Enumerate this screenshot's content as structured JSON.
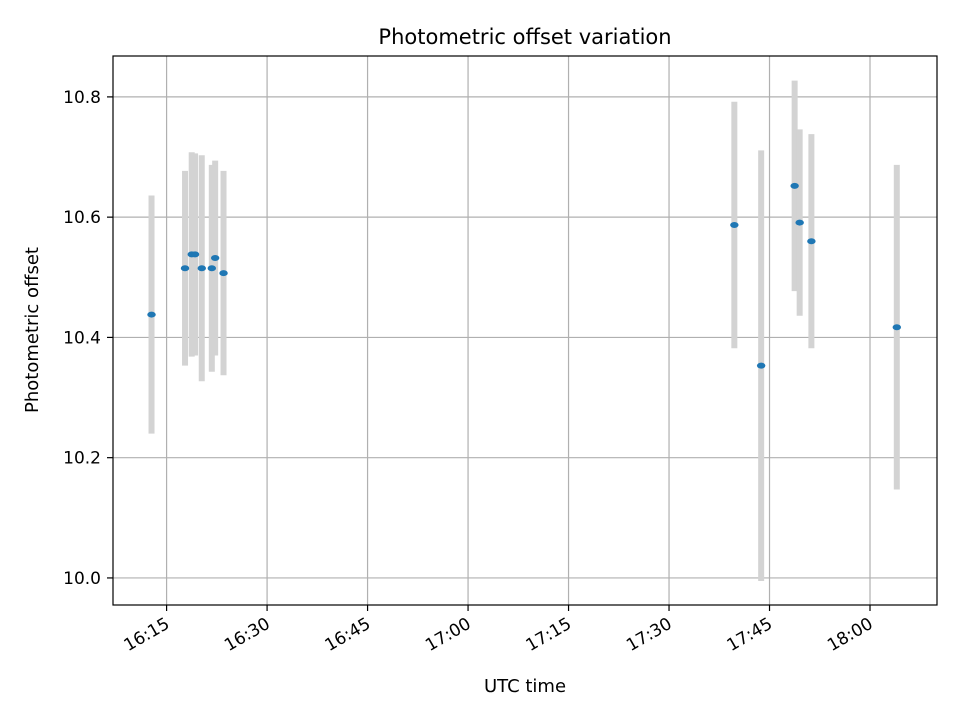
{
  "chart_data": {
    "type": "scatter",
    "title": "Photometric offset variation",
    "xlabel": "UTC time",
    "ylabel": "Photometric offset",
    "grid": true,
    "x_axis_type": "time",
    "xlim": [
      "16:07",
      "18:10"
    ],
    "ylim": [
      9.955,
      10.868
    ],
    "x_ticks": [
      "16:15",
      "16:30",
      "16:45",
      "17:00",
      "17:15",
      "17:30",
      "17:45",
      "18:00"
    ],
    "y_ticks": [
      "10.0",
      "10.2",
      "10.4",
      "10.6",
      "10.8"
    ],
    "marker_color": "#1f77b4",
    "errorbar_color": "#d3d3d3",
    "points": [
      {
        "time": "16:12:45",
        "value": 10.438,
        "err": 0.198
      },
      {
        "time": "16:17:45",
        "value": 10.515,
        "err": 0.162
      },
      {
        "time": "16:18:45",
        "value": 10.538,
        "err": 0.17
      },
      {
        "time": "16:19:15",
        "value": 10.538,
        "err": 0.168
      },
      {
        "time": "16:20:15",
        "value": 10.515,
        "err": 0.188
      },
      {
        "time": "16:21:45",
        "value": 10.515,
        "err": 0.172
      },
      {
        "time": "16:22:15",
        "value": 10.532,
        "err": 0.162
      },
      {
        "time": "16:23:30",
        "value": 10.507,
        "err": 0.17
      },
      {
        "time": "17:39:45",
        "value": 10.587,
        "err": 0.205
      },
      {
        "time": "17:43:45",
        "value": 10.353,
        "err": 0.358
      },
      {
        "time": "17:48:45",
        "value": 10.652,
        "err": 0.175
      },
      {
        "time": "17:49:30",
        "value": 10.591,
        "err": 0.155
      },
      {
        "time": "17:51:15",
        "value": 10.56,
        "err": 0.178
      },
      {
        "time": "18:04:00",
        "value": 10.417,
        "err": 0.27
      }
    ]
  }
}
